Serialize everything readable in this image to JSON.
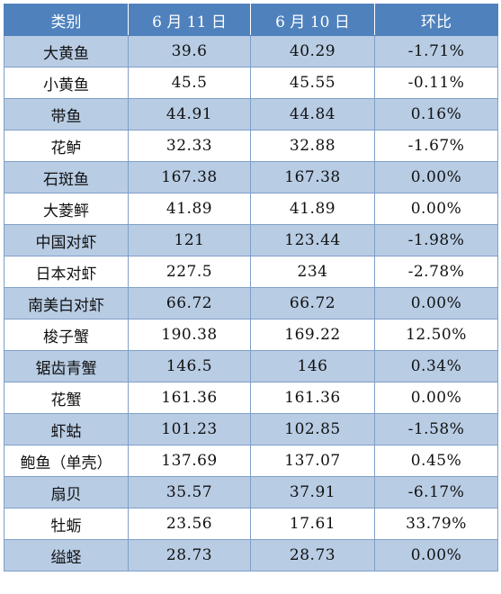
{
  "table": {
    "headers": [
      "类别",
      "6 月 11 日",
      "6 月 10 日",
      "环比"
    ],
    "rows": [
      [
        "大黄鱼",
        "39.6",
        "40.29",
        "-1.71%"
      ],
      [
        "小黄鱼",
        "45.5",
        "45.55",
        "-0.11%"
      ],
      [
        "带鱼",
        "44.91",
        "44.84",
        "0.16%"
      ],
      [
        "花鲈",
        "32.33",
        "32.88",
        "-1.67%"
      ],
      [
        "石斑鱼",
        "167.38",
        "167.38",
        "0.00%"
      ],
      [
        "大菱鲆",
        "41.89",
        "41.89",
        "0.00%"
      ],
      [
        "中国对虾",
        "121",
        "123.44",
        "-1.98%"
      ],
      [
        "日本对虾",
        "227.5",
        "234",
        "-2.78%"
      ],
      [
        "南美白对虾",
        "66.72",
        "66.72",
        "0.00%"
      ],
      [
        "梭子蟹",
        "190.38",
        "169.22",
        "12.50%"
      ],
      [
        "锯齿青蟹",
        "146.5",
        "146",
        "0.34%"
      ],
      [
        "花蟹",
        "161.36",
        "161.36",
        "0.00%"
      ],
      [
        "虾蛄",
        "101.23",
        "102.85",
        "-1.58%"
      ],
      [
        "鲍鱼（单壳）",
        "137.69",
        "137.07",
        "0.45%"
      ],
      [
        "扇贝",
        "35.57",
        "37.91",
        "-6.17%"
      ],
      [
        "牡蛎",
        "23.56",
        "17.61",
        "33.79%"
      ],
      [
        "缢蛏",
        "28.73",
        "28.73",
        "0.00%"
      ]
    ]
  },
  "colors": {
    "header_bg": "#4f81bd",
    "stripe_bg": "#b8cce4",
    "border": "#7f9fc8"
  }
}
